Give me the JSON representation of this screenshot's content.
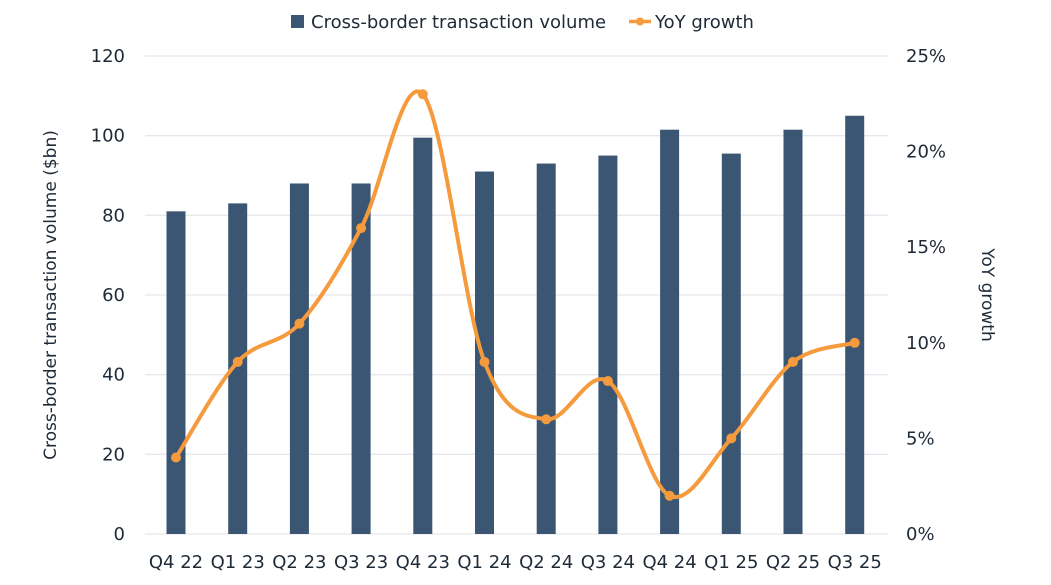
{
  "chart_data": {
    "type": "bar+line",
    "title": "",
    "categories": [
      "Q4 22",
      "Q1 23",
      "Q2 23",
      "Q3 23",
      "Q4 23",
      "Q1 24",
      "Q2 24",
      "Q3 24",
      "Q4 24",
      "Q1 25",
      "Q2 25",
      "Q3 25"
    ],
    "series": [
      {
        "name": "Cross-border transaction volume",
        "type": "bar",
        "axis": "left",
        "color": "#3a5673",
        "values": [
          81,
          83,
          88,
          88,
          99.5,
          91,
          93,
          95,
          101.5,
          95.5,
          101.5,
          105
        ]
      },
      {
        "name": "YoY growth",
        "type": "line",
        "axis": "right",
        "color": "#f59a3d",
        "smooth": true,
        "values": [
          4,
          9,
          11,
          16,
          23,
          9,
          6,
          8,
          2,
          5,
          9,
          10
        ]
      }
    ],
    "ylabel": "Cross-border transaction volume ($bn)",
    "ylim": [
      0,
      120
    ],
    "yticks": [
      "0",
      "20",
      "40",
      "60",
      "80",
      "100",
      "120"
    ],
    "ylabel_right": "YoY growth",
    "ylim_right": [
      0,
      25
    ],
    "yticks_right": [
      "0%",
      "5%",
      "10%",
      "15%",
      "20%",
      "25%"
    ],
    "grid": true,
    "legend_position": "top-center",
    "legend": [
      "Cross-border transaction volume",
      "YoY growth"
    ]
  }
}
